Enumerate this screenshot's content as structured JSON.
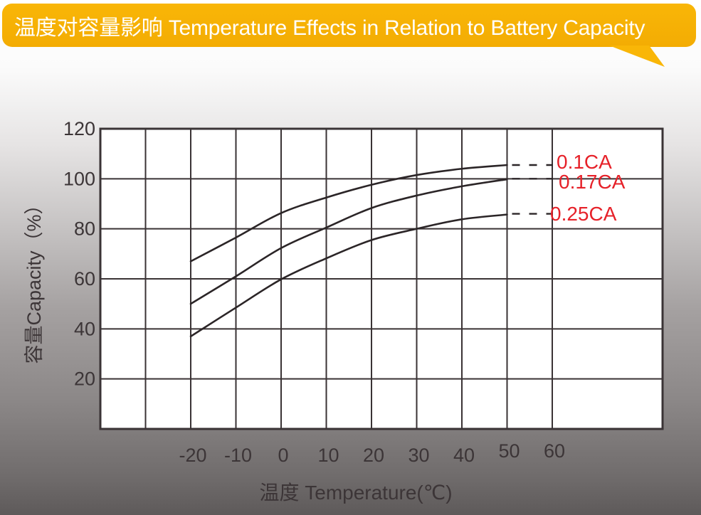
{
  "header": {
    "title": "温度对容量影响 Temperature Effects in Relation to Battery Capacity"
  },
  "colors": {
    "banner": "#F9B607",
    "banner2": "#F3AC03",
    "banner_text": "#FFFFFF",
    "axis_text": "#3C3537",
    "grid": "#3A3335",
    "curve": "#2B2527",
    "series_label": "#E62129",
    "plot_bg": "#FFFFFF"
  },
  "chart_data": {
    "type": "line",
    "title": "温度对容量影响 Temperature Effects in Relation to Battery Capacity",
    "xlabel": "温度 Temperature(℃)",
    "ylabel": "容量Capacity（%）",
    "xlim": [
      -40,
      85
    ],
    "ylim": [
      0,
      120
    ],
    "xticks": [
      -20,
      -10,
      0,
      10,
      20,
      30,
      40,
      50,
      60
    ],
    "yticks": [
      20,
      40,
      60,
      80,
      100,
      120
    ],
    "x_gridlines": [
      -30,
      -20,
      -10,
      0,
      10,
      20,
      30,
      40,
      50,
      60
    ],
    "y_gridlines": [
      20,
      40,
      60,
      80,
      100
    ],
    "grid": true,
    "legend_position": "right-inline",
    "series": [
      {
        "name": "0.1CA",
        "x": [
          -20,
          -10,
          0,
          10,
          20,
          30,
          40,
          50
        ],
        "values": [
          67,
          76.5,
          86.3,
          92.5,
          97.6,
          101.5,
          104,
          105.5
        ],
        "dash_to_x": 60,
        "dash_value": 105.5
      },
      {
        "name": "0.17CA",
        "x": [
          -20,
          -10,
          0,
          10,
          20,
          30,
          40,
          50
        ],
        "values": [
          50,
          61,
          72.3,
          80.5,
          88.3,
          93.3,
          97,
          99.8
        ],
        "dash_to_x": 60,
        "dash_value": 100
      },
      {
        "name": "0.25CA",
        "x": [
          -20,
          -10,
          0,
          10,
          20,
          30,
          40,
          50
        ],
        "values": [
          37,
          48.5,
          59.8,
          68.2,
          75.5,
          80,
          83.8,
          85.7
        ],
        "dash_to_x": 60,
        "dash_value": 86
      }
    ]
  }
}
